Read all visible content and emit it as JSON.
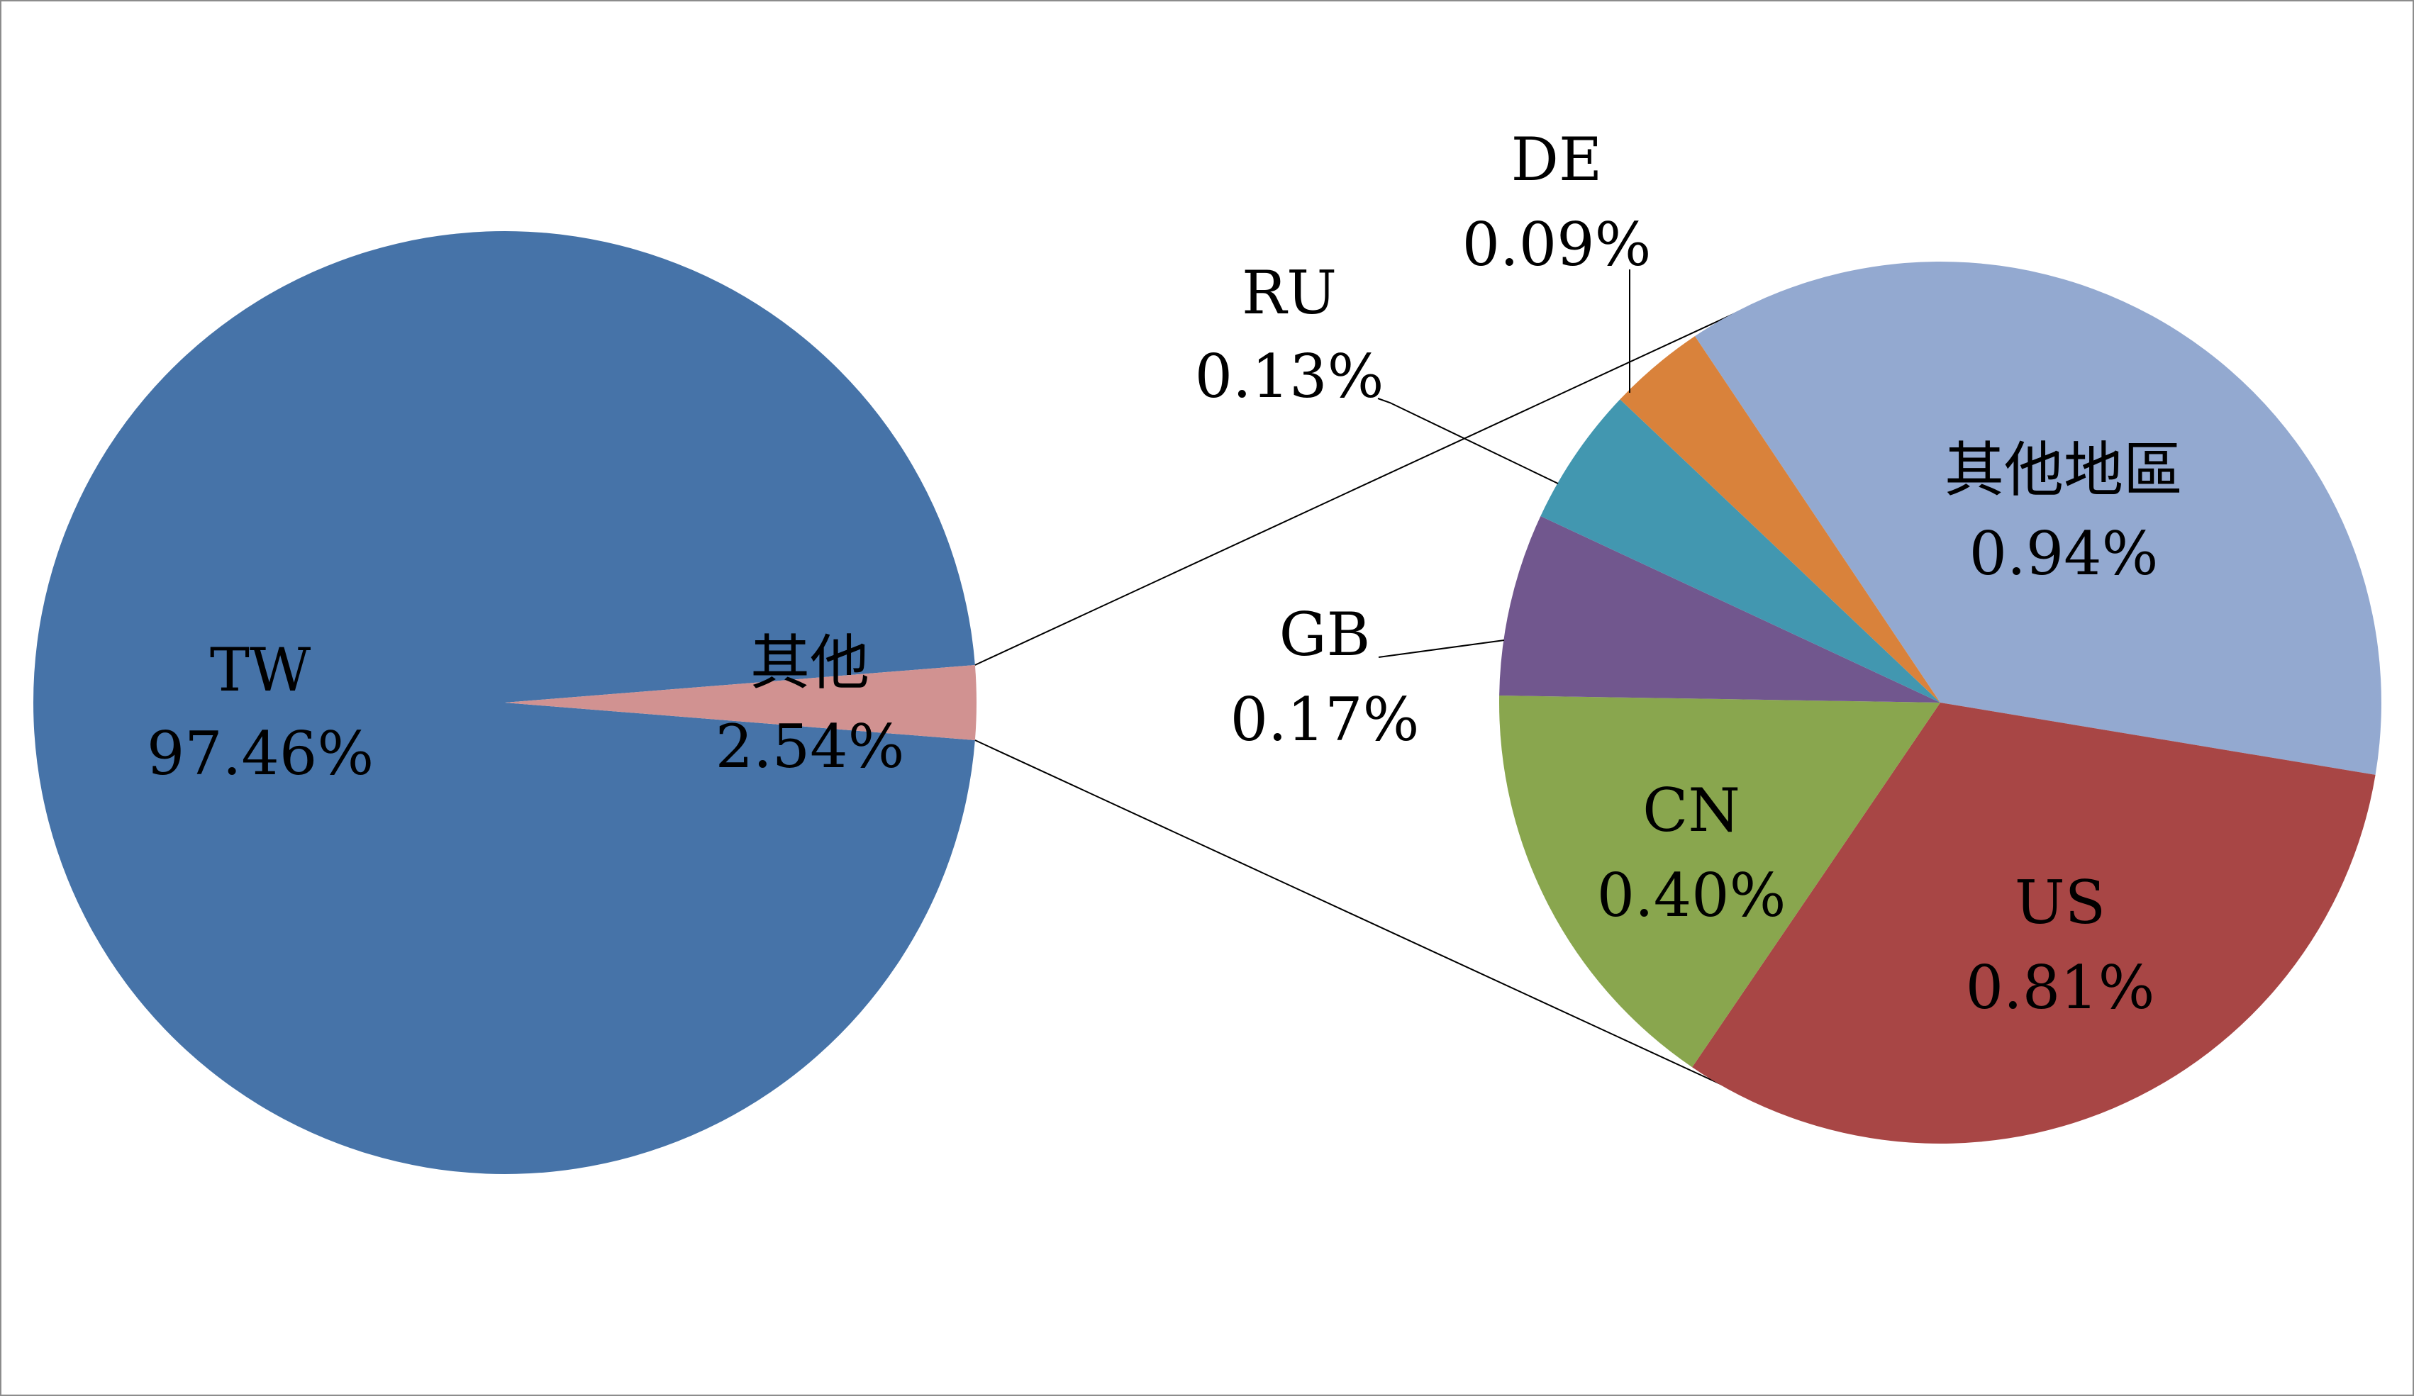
{
  "chart_data": {
    "type": "pie",
    "subtype": "pie-of-pie",
    "main_pie": {
      "slices": [
        {
          "label": "TW",
          "value": 97.46,
          "value_text": "97.46%",
          "color": "#4673a8"
        },
        {
          "label": "其他",
          "value": 2.54,
          "value_text": "2.54%",
          "color": "#d19291"
        }
      ]
    },
    "secondary_pie": {
      "source_slice": "其他",
      "slices": [
        {
          "label": "其他地區",
          "value": 0.94,
          "value_text": "0.94%",
          "color": "#93a9d0"
        },
        {
          "label": "US",
          "value": 0.81,
          "value_text": "0.81%",
          "color": "#a84645"
        },
        {
          "label": "CN",
          "value": 0.4,
          "value_text": "0.40%",
          "color": "#89a64e"
        },
        {
          "label": "GB",
          "value": 0.17,
          "value_text": "0.17%",
          "color": "#71578e"
        },
        {
          "label": "RU",
          "value": 0.13,
          "value_text": "0.13%",
          "color": "#4297b0"
        },
        {
          "label": "DE",
          "value": 0.09,
          "value_text": "0.09%",
          "color": "#d9823b"
        }
      ]
    }
  }
}
